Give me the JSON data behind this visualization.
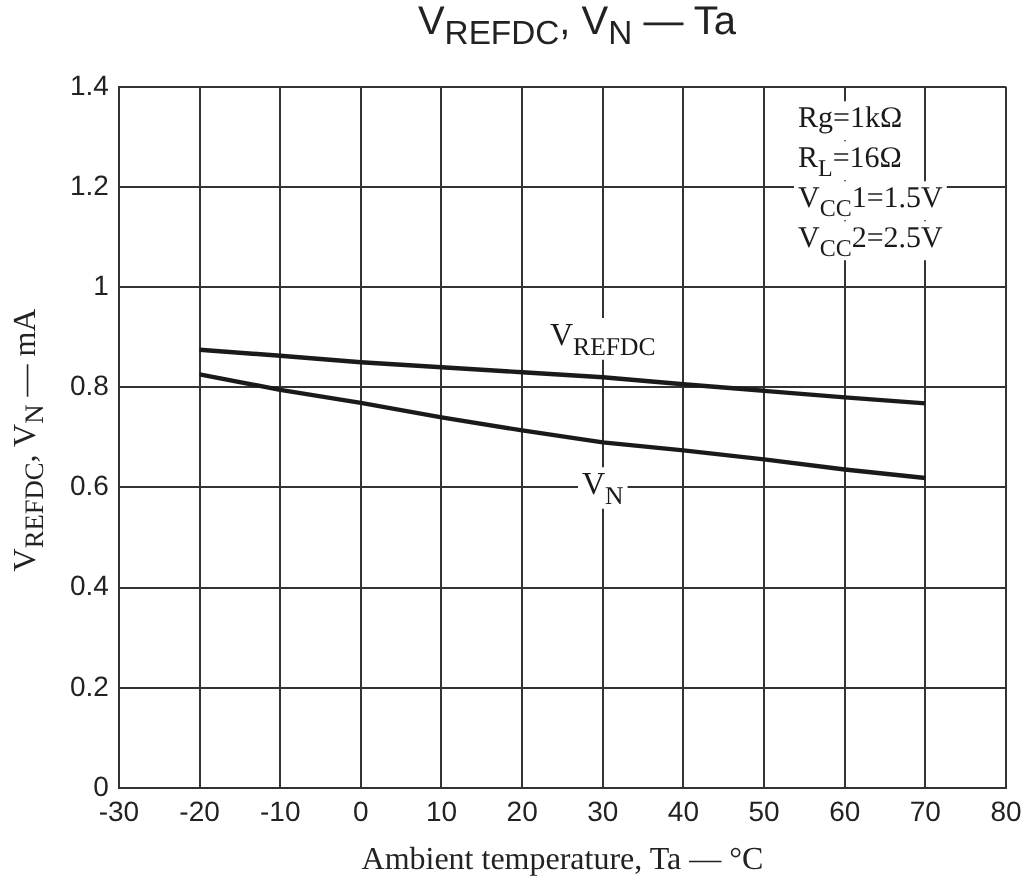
{
  "chart_data": {
    "type": "line",
    "title": "V$_{REFDC}$, V$_{N}$ — Ta",
    "xlabel": "Ambient temperature, Ta — °C",
    "ylabel": "V$_{REFDC}$, V$_{N}$ — mA",
    "x": [
      -20,
      -10,
      0,
      10,
      20,
      30,
      40,
      50,
      60,
      70
    ],
    "series": [
      {
        "name": "V$_{REFDC}$",
        "color": "#1a1a1a",
        "values": [
          0.875,
          0.863,
          0.85,
          0.84,
          0.83,
          0.82,
          0.806,
          0.793,
          0.78,
          0.768
        ]
      },
      {
        "name": "V$_{N}$",
        "color": "#1a1a1a",
        "values": [
          0.826,
          0.795,
          0.769,
          0.74,
          0.714,
          0.69,
          0.674,
          0.656,
          0.636,
          0.619
        ]
      }
    ],
    "xlim": [
      -30,
      80
    ],
    "xticks": [
      -30,
      -20,
      -10,
      0,
      10,
      20,
      30,
      40,
      50,
      60,
      70,
      80
    ],
    "ylim": [
      0,
      1.4
    ],
    "yticks": [
      0,
      0.2,
      0.4,
      0.6,
      0.8,
      1.0,
      1.2,
      1.4
    ],
    "grid": true,
    "legend": false,
    "marker": "none",
    "line_style": "solid",
    "annotations": [
      "Rg=1kΩ",
      "R$_{L}$=16Ω",
      "V$_{CC}$1=1.5V",
      "V$_{CC}$2=2.5V"
    ]
  }
}
